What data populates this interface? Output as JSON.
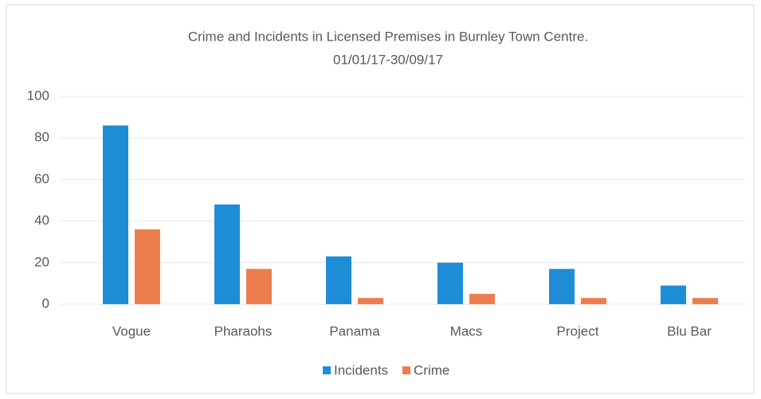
{
  "chart_data": {
    "type": "bar",
    "title": "Crime and Incidents in Licensed Premises in Burnley Town Centre.",
    "subtitle": "01/01/17-30/09/17",
    "categories": [
      "Vogue",
      "Pharaohs",
      "Panama",
      "Macs",
      "Project",
      "Blu Bar"
    ],
    "series": [
      {
        "name": "Incidents",
        "color": "#1f8dd6",
        "values": [
          86,
          48,
          23,
          20,
          17,
          9
        ]
      },
      {
        "name": "Crime",
        "color": "#ed7d4f",
        "values": [
          36,
          17,
          3,
          5,
          3,
          3
        ]
      }
    ],
    "ylim": [
      0,
      100
    ],
    "yticks": [
      0,
      20,
      40,
      60,
      80,
      100
    ],
    "grid": true,
    "legend": "bottom"
  }
}
